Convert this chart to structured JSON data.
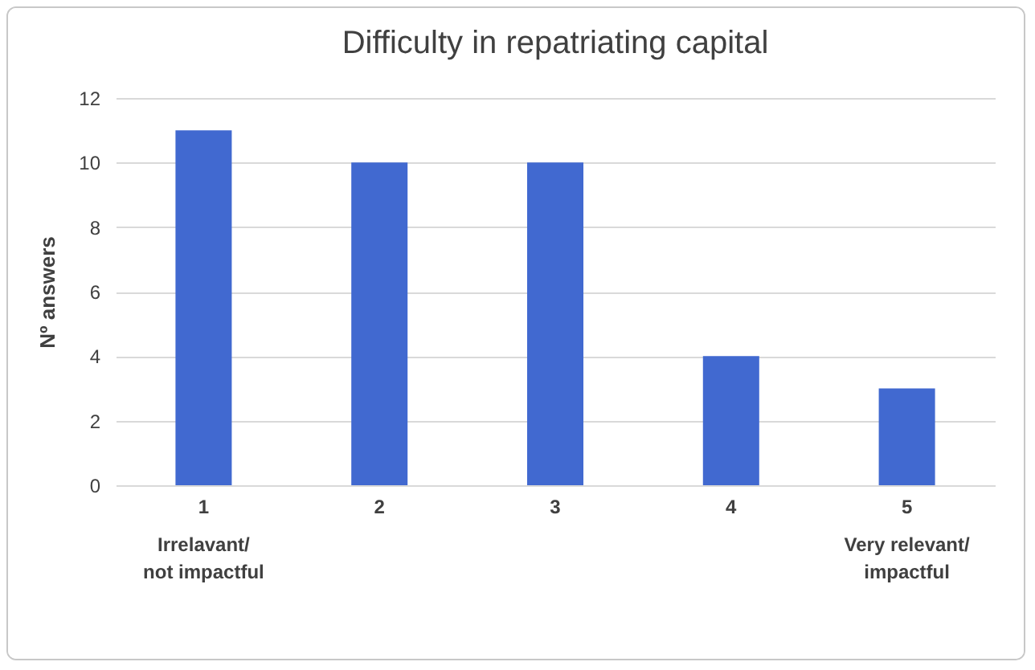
{
  "chart_data": {
    "type": "bar",
    "title": "Difficulty in repatriating capital",
    "ylabel": "Nº answers",
    "categories": [
      "1",
      "2",
      "3",
      "4",
      "5"
    ],
    "values": [
      11,
      10,
      10,
      4,
      3
    ],
    "color": "#4169d0",
    "ylim": [
      0,
      12
    ],
    "yticks": [
      0,
      2,
      4,
      6,
      8,
      10,
      12
    ],
    "grid": "y",
    "annotations": [
      "Irrelavant/\nnot impactful",
      "Very relevant/\nimpactful"
    ]
  }
}
